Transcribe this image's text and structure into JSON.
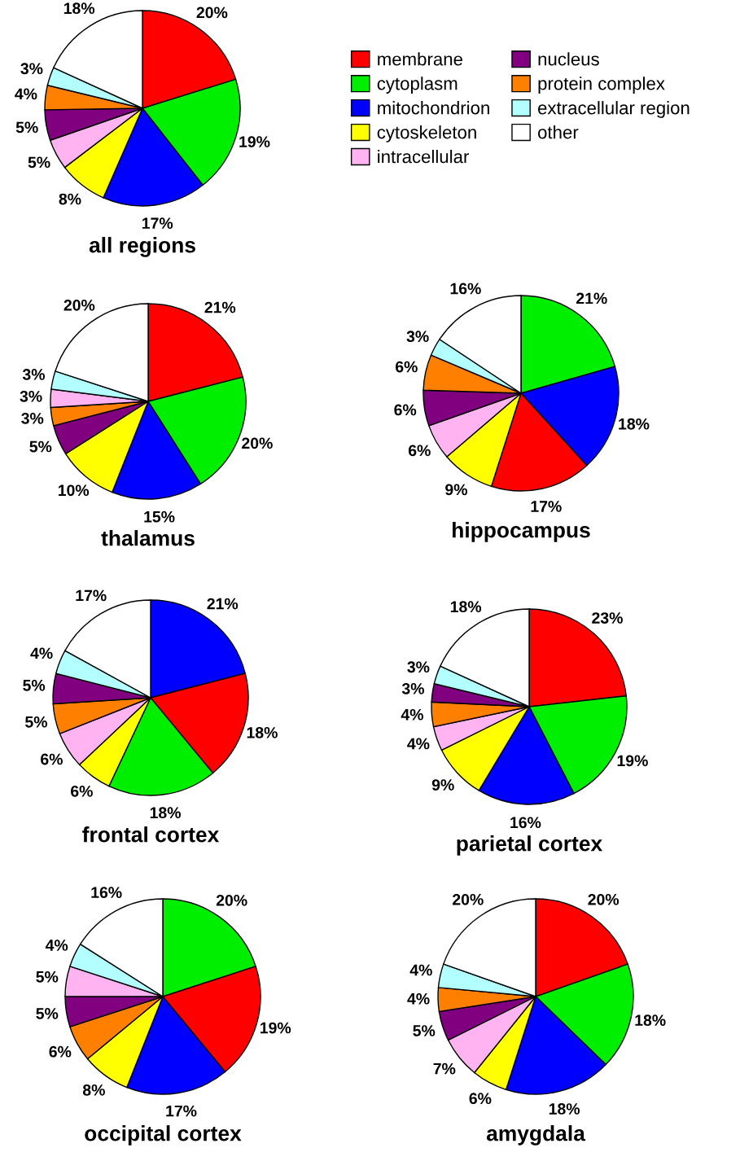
{
  "chart_data": [
    {
      "type": "pie",
      "title": "all regions",
      "legend": "right",
      "categories": [
        "membrane",
        "cytoplasm",
        "mitochondrion",
        "cytoskeleton",
        "intracellular",
        "nucleus",
        "protein complex",
        "extracellular region",
        "other"
      ],
      "values": [
        20,
        19,
        17,
        8,
        5,
        5,
        4,
        3,
        18
      ],
      "value_labels": [
        "20%",
        "19%",
        "17%",
        "8%",
        "5%",
        "5%",
        "4%",
        "3%",
        "18%"
      ],
      "colors": [
        "#ff0000",
        "#00ee00",
        "#0000ff",
        "#ffff00",
        "#ffb3f0",
        "#800080",
        "#ff8000",
        "#b3ffff",
        "#ffffff"
      ]
    },
    {
      "type": "pie",
      "title": "thalamus",
      "categories": [
        null,
        null,
        null,
        null,
        null,
        null,
        null,
        null,
        null
      ],
      "values": [
        21,
        20,
        15,
        10,
        5,
        3,
        3,
        3,
        20
      ],
      "value_labels": [
        "21%",
        "20%",
        "15%",
        "10%",
        "5%",
        "3%",
        "3%",
        "3%",
        "20%"
      ],
      "colors": [
        "#ff0000",
        "#00ee00",
        "#0000ff",
        "#ffff00",
        "#800080",
        "#ff8000",
        "#ffb3f0",
        "#b3ffff",
        "#ffffff"
      ]
    },
    {
      "type": "pie",
      "title": "hippocampus",
      "categories": [
        null,
        null,
        null,
        null,
        null,
        null,
        null,
        null,
        null
      ],
      "values": [
        21,
        18,
        17,
        9,
        6,
        6,
        6,
        3,
        16
      ],
      "value_labels": [
        "21%",
        "18%",
        "17%",
        "9%",
        "6%",
        "6%",
        "6%",
        "3%",
        "16%"
      ],
      "colors": [
        "#00ee00",
        "#0000ff",
        "#ff0000",
        "#ffff00",
        "#ffb3f0",
        "#800080",
        "#ff8000",
        "#b3ffff",
        "#ffffff"
      ]
    },
    {
      "type": "pie",
      "title": "frontal cortex",
      "categories": [
        null,
        null,
        null,
        null,
        null,
        null,
        null,
        null,
        null
      ],
      "values": [
        21,
        18,
        18,
        6,
        6,
        5,
        5,
        4,
        17
      ],
      "value_labels": [
        "21%",
        "18%",
        "18%",
        "6%",
        "6%",
        "5%",
        "5%",
        "4%",
        "17%"
      ],
      "colors": [
        "#0000ff",
        "#ff0000",
        "#00ee00",
        "#ffff00",
        "#ffb3f0",
        "#ff8000",
        "#800080",
        "#b3ffff",
        "#ffffff"
      ]
    },
    {
      "type": "pie",
      "title": "parietal cortex",
      "categories": [
        null,
        null,
        null,
        null,
        null,
        null,
        null,
        null,
        null
      ],
      "values": [
        23,
        19,
        16,
        9,
        4,
        4,
        3,
        3,
        18
      ],
      "value_labels": [
        "23%",
        "19%",
        "16%",
        "9%",
        "4%",
        "4%",
        "3%",
        "3%",
        "18%"
      ],
      "colors": [
        "#ff0000",
        "#00ee00",
        "#0000ff",
        "#ffff00",
        "#ffb3f0",
        "#ff8000",
        "#800080",
        "#b3ffff",
        "#ffffff"
      ]
    },
    {
      "type": "pie",
      "title": "occipital cortex",
      "categories": [
        null,
        null,
        null,
        null,
        null,
        null,
        null,
        null,
        null
      ],
      "values": [
        20,
        19,
        17,
        8,
        6,
        5,
        5,
        4,
        16
      ],
      "value_labels": [
        "20%",
        "19%",
        "17%",
        "8%",
        "6%",
        "5%",
        "5%",
        "4%",
        "16%"
      ],
      "colors": [
        "#00ee00",
        "#ff0000",
        "#0000ff",
        "#ffff00",
        "#ff8000",
        "#800080",
        "#ffb3f0",
        "#b3ffff",
        "#ffffff"
      ]
    },
    {
      "type": "pie",
      "title": "amygdala",
      "categories": [
        null,
        null,
        null,
        null,
        null,
        null,
        null,
        null,
        null
      ],
      "values": [
        20,
        18,
        18,
        6,
        7,
        5,
        4,
        4,
        20
      ],
      "value_labels": [
        "20%",
        "18%",
        "18%",
        "6%",
        "7%",
        "5%",
        "4%",
        "4%",
        "20%"
      ],
      "colors": [
        "#ff0000",
        "#00ee00",
        "#0000ff",
        "#ffff00",
        "#ffb3f0",
        "#800080",
        "#ff8000",
        "#b3ffff",
        "#ffffff"
      ]
    }
  ]
}
